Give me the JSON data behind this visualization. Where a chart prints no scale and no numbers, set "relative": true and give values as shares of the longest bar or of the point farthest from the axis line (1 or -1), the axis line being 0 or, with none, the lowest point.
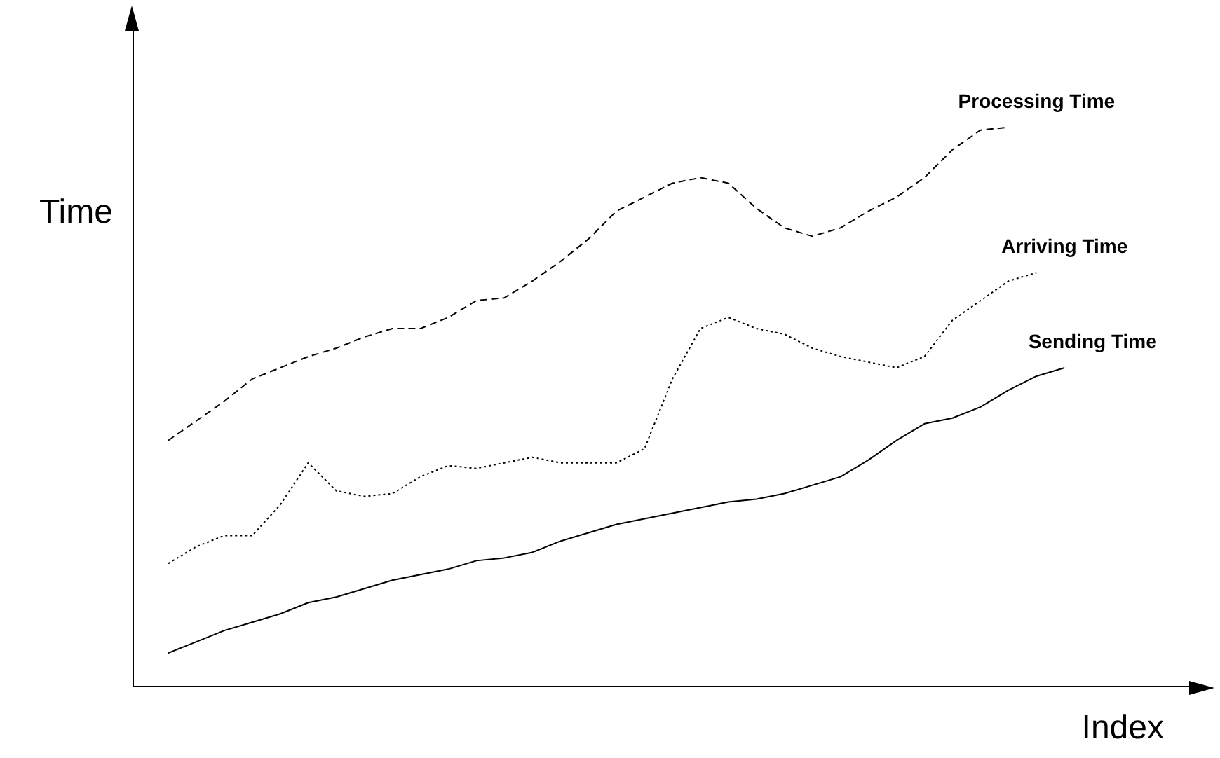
{
  "chart_data": {
    "type": "line",
    "relative": true,
    "xlabel": "Index",
    "ylabel": "Time",
    "marker": "none",
    "categories": [
      null,
      null,
      null,
      null,
      null,
      null,
      null,
      null,
      null,
      null,
      null,
      null,
      null,
      null,
      null,
      null,
      null,
      null,
      null,
      null,
      null,
      null,
      null,
      null,
      null,
      null,
      null,
      null,
      null,
      null,
      null,
      null,
      null
    ],
    "series": [
      {
        "name": "Processing Time",
        "color": "#000000",
        "line_style": "dashed",
        "values": [
          0.44,
          0.475,
          0.51,
          0.55,
          0.57,
          0.59,
          0.605,
          0.625,
          0.64,
          0.64,
          0.66,
          0.69,
          0.695,
          0.725,
          0.76,
          0.8,
          0.85,
          0.875,
          0.9,
          0.91,
          0.9,
          0.855,
          0.82,
          0.805,
          0.82,
          0.85,
          0.875,
          0.91,
          0.96,
          0.995,
          1,
          null,
          null
        ]
      },
      {
        "name": "Arriving Time",
        "color": "#000000",
        "line_style": "dotted",
        "values": [
          0.22,
          0.25,
          0.27,
          0.27,
          0.325,
          0.4,
          0.35,
          0.34,
          0.345,
          0.375,
          0.395,
          0.39,
          0.4,
          0.41,
          0.4,
          0.4,
          0.4,
          0.425,
          0.55,
          0.64,
          0.66,
          0.64,
          0.63,
          0.605,
          0.59,
          0.58,
          0.57,
          0.59,
          0.655,
          0.69,
          0.725,
          0.74,
          null
        ]
      },
      {
        "name": "Sending Time",
        "color": "#000000",
        "line_style": "solid",
        "values": [
          0.06,
          0.08,
          0.1,
          0.115,
          0.13,
          0.15,
          0.16,
          0.175,
          0.19,
          0.2,
          0.21,
          0.225,
          0.23,
          0.24,
          0.26,
          0.275,
          0.29,
          0.3,
          0.31,
          0.32,
          0.33,
          0.335,
          0.345,
          0.36,
          0.375,
          0.405,
          0.44,
          0.47,
          0.48,
          0.5,
          0.53,
          0.555,
          0.57
        ]
      }
    ]
  }
}
